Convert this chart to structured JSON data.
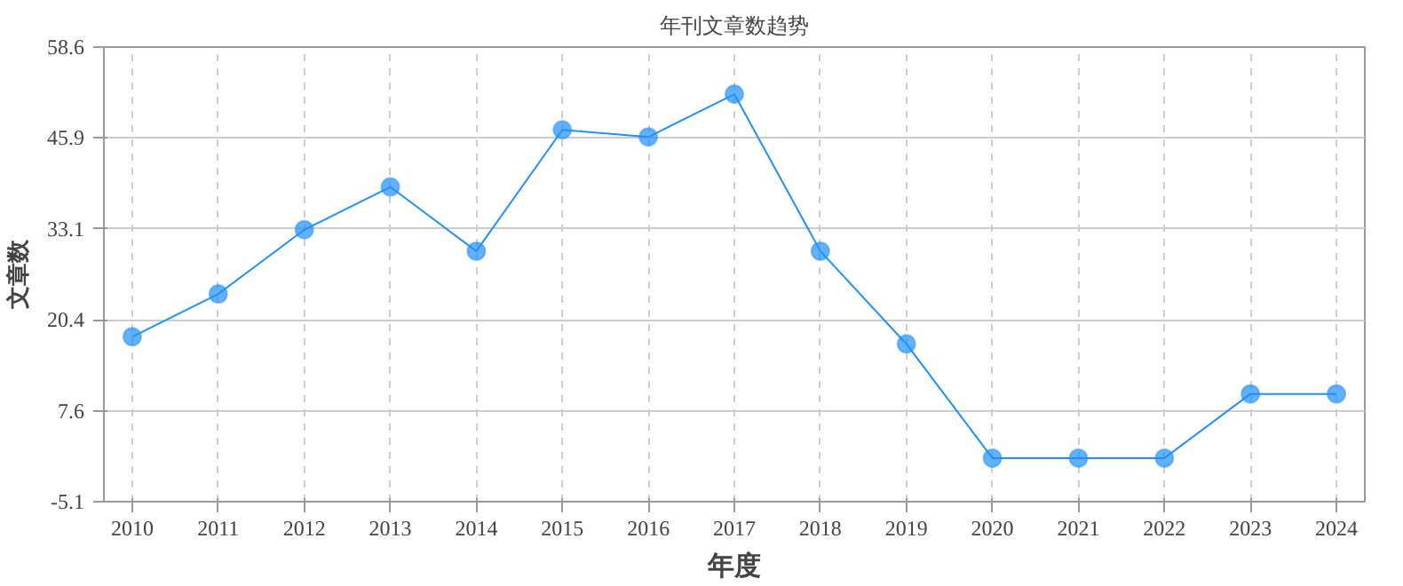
{
  "chart_data": {
    "type": "line",
    "title": "年刊文章数趋势",
    "xlabel": "年度",
    "ylabel": "文章数",
    "categories": [
      "2010",
      "2011",
      "2012",
      "2013",
      "2014",
      "2015",
      "2016",
      "2017",
      "2018",
      "2019",
      "2020",
      "2021",
      "2022",
      "2023",
      "2024"
    ],
    "series": [
      {
        "color": "#1e90ff",
        "values": [
          18,
          24,
          33,
          39,
          30,
          47,
          46,
          52,
          30,
          17,
          1,
          1,
          1,
          10,
          10
        ]
      }
    ],
    "ylim": [
      -5.1,
      58.6
    ],
    "yticks": [
      -5.1,
      7.6,
      20.4,
      33.1,
      45.9,
      58.6
    ],
    "grid": true,
    "marker": "circle",
    "line_style": "solid"
  }
}
